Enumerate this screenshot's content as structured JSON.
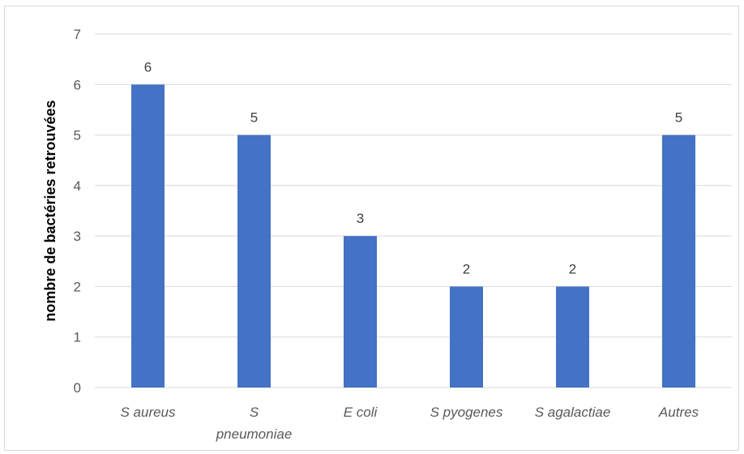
{
  "chart_data": {
    "type": "bar",
    "title": "",
    "xlabel": "",
    "ylabel": "nombre de bactéries retrouvées",
    "categories": [
      "S aureus",
      "S pneumoniae",
      "E coli",
      "S pyogenes",
      "S agalactiae",
      "Autres"
    ],
    "category_lines": [
      [
        "S aureus"
      ],
      [
        "S",
        "pneumoniae"
      ],
      [
        "E coli"
      ],
      [
        "S pyogenes"
      ],
      [
        "S agalactiae"
      ],
      [
        "Autres"
      ]
    ],
    "values": [
      6,
      5,
      3,
      2,
      2,
      5
    ],
    "ylim": [
      0,
      7
    ],
    "yticks": [
      0,
      1,
      2,
      3,
      4,
      5,
      6,
      7
    ],
    "grid": true,
    "legend": "none",
    "bar_color": "#4472c4",
    "grid_color": "#d9d9d9"
  }
}
